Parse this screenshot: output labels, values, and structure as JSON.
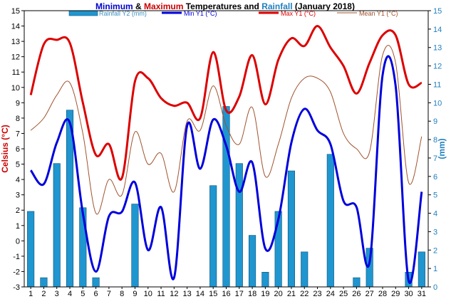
{
  "chart_data": {
    "type": "line",
    "title_parts": [
      {
        "text": "Minimum",
        "color": "#0000cc"
      },
      {
        "text": " & ",
        "color": "#000000"
      },
      {
        "text": "Maximum",
        "color": "#cc0000"
      },
      {
        "text": " Temperatures and ",
        "color": "#000000"
      },
      {
        "text": "Rainfall",
        "color": "#1f7fbf"
      },
      {
        "text": " (January 2018)",
        "color": "#000000"
      }
    ],
    "ylabel_left": "Celsius (°C)",
    "ylabel_right": "(mm)",
    "ylim_left": [
      -3,
      15
    ],
    "ylim_right": [
      0,
      15
    ],
    "yticks_left": [
      "-3",
      "-2",
      "-1",
      "0",
      "1",
      "2",
      "3",
      "4",
      "5",
      "6",
      "7",
      "8",
      "9",
      "10",
      "11",
      "12",
      "13",
      "14",
      "15"
    ],
    "yticks_right": [
      "0",
      "1",
      "2",
      "3",
      "4",
      "5",
      "6",
      "7",
      "8",
      "9",
      "10",
      "11",
      "12",
      "13",
      "14",
      "15"
    ],
    "categories": [
      "1",
      "2",
      "3",
      "4",
      "5",
      "6",
      "7",
      "8",
      "9",
      "10",
      "11",
      "12",
      "13",
      "14",
      "15",
      "16",
      "17",
      "18",
      "19",
      "20",
      "21",
      "22",
      "23",
      "24",
      "25",
      "26",
      "27",
      "28",
      "29",
      "30",
      "31"
    ],
    "legend": [
      {
        "label": "Rainfall Y2 (mm)",
        "kind": "bar",
        "color": "#1f96cf"
      },
      {
        "label": "Min Y1 (°C)",
        "kind": "line",
        "color": "#0000dd"
      },
      {
        "label": "Max Y1 (°C)",
        "kind": "line",
        "color": "#dd0000"
      },
      {
        "label": "Mean Y1 (°C)",
        "kind": "line",
        "color": "#a0522d"
      }
    ],
    "series": [
      {
        "name": "Rainfall Y2 (mm)",
        "axis": "right",
        "type": "bar",
        "color": "#1f96cf",
        "values": [
          4.1,
          0.5,
          6.7,
          9.6,
          4.3,
          0.5,
          0,
          0,
          4.5,
          0,
          0,
          0,
          0,
          0,
          5.5,
          9.8,
          6.7,
          2.8,
          0.8,
          4.1,
          6.3,
          1.9,
          0,
          7.2,
          0,
          0.5,
          2.1,
          0,
          0,
          0.8,
          1.9
        ]
      },
      {
        "name": "Min Y1 (°C)",
        "axis": "left",
        "type": "line",
        "color": "#0000dd",
        "values": [
          4.6,
          3.7,
          6.4,
          7.7,
          1.8,
          -2.0,
          1.6,
          1.9,
          3.8,
          -0.6,
          2.2,
          -2.4,
          7.5,
          4.7,
          7.9,
          6.2,
          3.2,
          5.1,
          -0.5,
          1.4,
          6.4,
          8.6,
          7.2,
          6.3,
          2.6,
          2.2,
          -1.4,
          10.8,
          10.1,
          -2.6,
          3.2
        ]
      },
      {
        "name": "Max Y1 (°C)",
        "axis": "left",
        "type": "line",
        "color": "#dd0000",
        "values": [
          9.5,
          12.8,
          13.1,
          12.9,
          9.0,
          5.6,
          6.3,
          4.1,
          10.4,
          10.6,
          9.3,
          8.8,
          9.0,
          8.0,
          12.3,
          8.5,
          9.4,
          12.1,
          8.9,
          11.8,
          13.2,
          12.7,
          14.0,
          12.6,
          11.4,
          9.6,
          11.6,
          13.4,
          13.4,
          10.2,
          10.3
        ]
      },
      {
        "name": "Mean Y1 (°C)",
        "axis": "left",
        "type": "line",
        "color": "#a0522d",
        "values": [
          7.2,
          8.0,
          9.5,
          10.3,
          7.0,
          1.8,
          4.0,
          3.0,
          7.1,
          5.0,
          5.7,
          3.2,
          7.8,
          7.2,
          10.1,
          7.5,
          6.3,
          8.7,
          4.2,
          6.3,
          9.3,
          10.6,
          10.6,
          9.7,
          7.0,
          6.0,
          5.8,
          12.1,
          11.6,
          3.8,
          6.8
        ]
      }
    ],
    "grid": false,
    "legend_position": "top"
  }
}
